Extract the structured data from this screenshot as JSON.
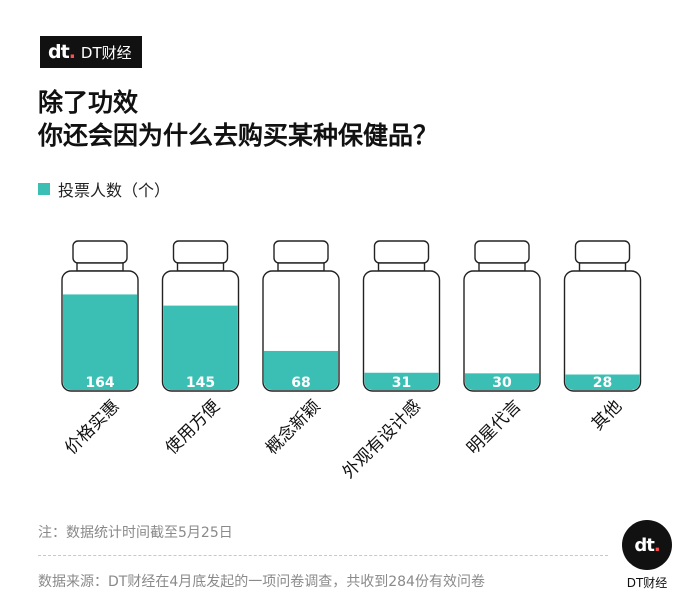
{
  "header": {
    "logo_mark": "dt",
    "logo_text": "DT财经",
    "title_line1": "除了功效",
    "title_line2": "你还会因为什么去购买某种保健品？"
  },
  "legend": {
    "label": "投票人数（个）",
    "color": "#3bbfb4"
  },
  "chart_data": {
    "type": "bar",
    "title": "除了功效 你还会因为什么去购买某种保健品？",
    "series": [
      {
        "name": "投票人数（个）",
        "values": [
          164,
          145,
          68,
          31,
          30,
          28
        ]
      }
    ],
    "categories": [
      "价格实惠",
      "使用方便",
      "概念新颖",
      "外观有设计感",
      "明星代言",
      "其他"
    ],
    "values": [
      164,
      145,
      68,
      31,
      30,
      28
    ],
    "ylim": [
      0,
      180
    ],
    "color": "#3bbfb4",
    "grid": false
  },
  "footer": {
    "note": "注：数据统计时间截至5月25日",
    "source": "数据来源：DT财经在4月底发起的一项问卷调查，共收到284份有效问卷",
    "brand_mark": "dt",
    "brand_text": "DT财经"
  }
}
